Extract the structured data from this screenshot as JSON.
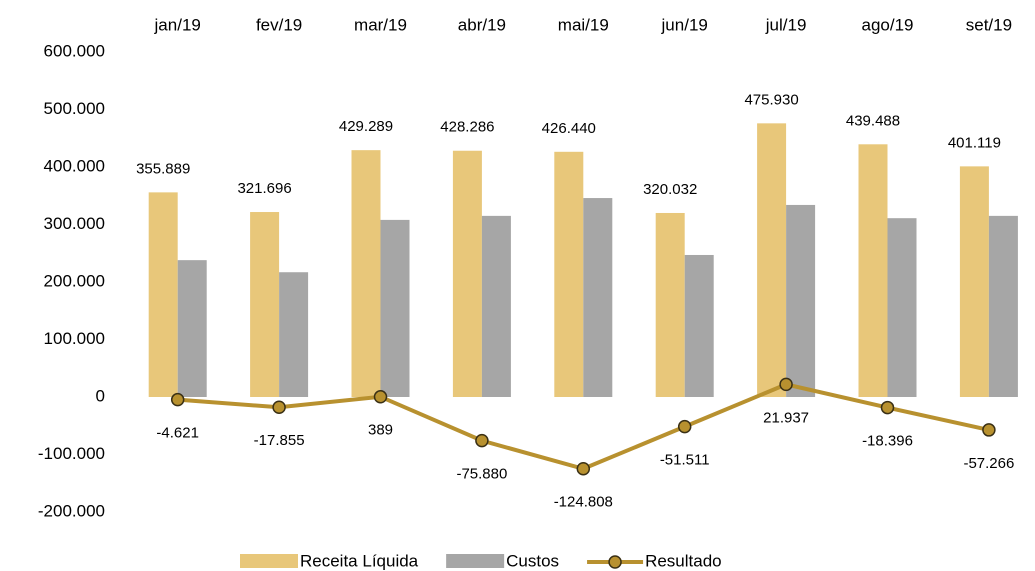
{
  "chart_data": {
    "type": "bar-line",
    "categories": [
      "jan/19",
      "fev/19",
      "mar/19",
      "abr/19",
      "mai/19",
      "jun/19",
      "jul/19",
      "ago/19",
      "set/19"
    ],
    "series": [
      {
        "name": "Receita Líquida",
        "type": "bar",
        "color": "#e8c77a",
        "values": [
          355889,
          321696,
          429289,
          428286,
          426440,
          320032,
          475930,
          439488,
          401119
        ],
        "value_labels": [
          "355.889",
          "321.696",
          "429.289",
          "428.286",
          "426.440",
          "320.032",
          "475.930",
          "439.488",
          "401.119"
        ]
      },
      {
        "name": "Custos",
        "type": "bar",
        "color": "#a6a6a6",
        "values": [
          238000,
          217000,
          308000,
          315000,
          346000,
          247000,
          334000,
          311000,
          315000
        ]
      },
      {
        "name": "Resultado",
        "type": "line",
        "color": "#b8912f",
        "values": [
          -4621,
          -17855,
          389,
          -75880,
          -124808,
          -51511,
          21937,
          -18396,
          -57266
        ],
        "value_labels": [
          "-4.621",
          "-17.855",
          "389",
          "-75.880",
          "-124.808",
          "-51.511",
          "21.937",
          "-18.396",
          "-57.266"
        ]
      }
    ],
    "ylim": [
      -200000,
      600000
    ],
    "yticks": [
      {
        "value": -200000,
        "label": "-200.000"
      },
      {
        "value": -100000,
        "label": "-100.000"
      },
      0,
      {
        "value": 100000,
        "label": "100.000"
      },
      {
        "value": 200000,
        "label": "200.000"
      },
      {
        "value": 300000,
        "label": "300.000"
      },
      {
        "value": 400000,
        "label": "400.000"
      },
      {
        "value": 500000,
        "label": "500.000"
      },
      {
        "value": 600000,
        "label": "600.000"
      }
    ],
    "grid": false,
    "legend": "bottom"
  }
}
